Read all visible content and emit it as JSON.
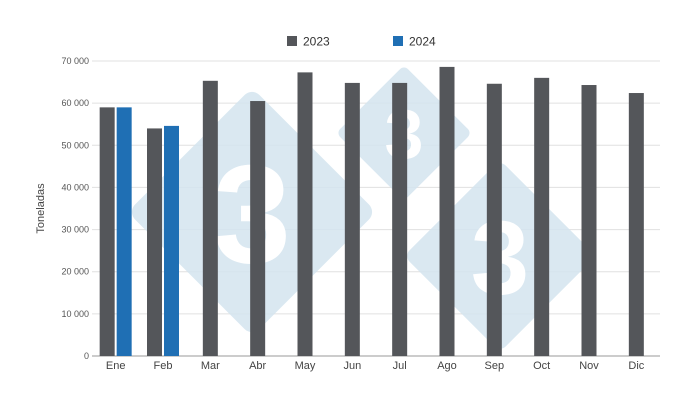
{
  "chart_data": {
    "type": "bar",
    "ylabel": "Toneladas",
    "xlabel": "",
    "ylim": [
      0,
      70000
    ],
    "ytick_values": [
      0,
      10000,
      20000,
      30000,
      40000,
      50000,
      60000,
      70000
    ],
    "ytick_labels": [
      "0",
      "10 000",
      "20 000",
      "30 000",
      "40 000",
      "50 000",
      "60 000",
      "70 000"
    ],
    "grid": true,
    "legend_position": "top-center",
    "categories": [
      "Ene",
      "Feb",
      "Mar",
      "Abr",
      "May",
      "Jun",
      "Jul",
      "Ago",
      "Sep",
      "Oct",
      "Nov",
      "Dic"
    ],
    "series": [
      {
        "name": "2023",
        "color": "#54565a",
        "values": [
          59000,
          54000,
          65300,
          60500,
          67300,
          64800,
          64800,
          68600,
          64600,
          66000,
          64300,
          62400
        ]
      },
      {
        "name": "2024",
        "color": "#1f6fb4",
        "values": [
          59000,
          54600,
          null,
          null,
          null,
          null,
          null,
          null,
          null,
          null,
          null,
          null
        ]
      }
    ]
  },
  "watermark": {
    "text": "3",
    "icon": "333-logo-watermark"
  }
}
